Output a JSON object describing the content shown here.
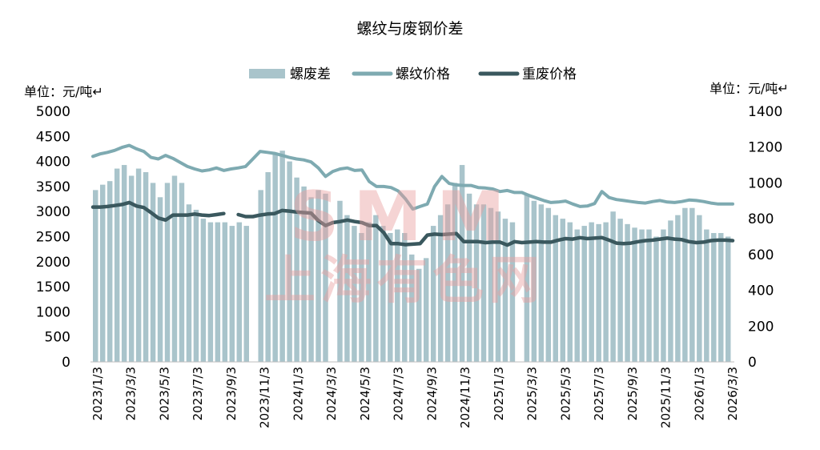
{
  "chart_data": {
    "type": "bar+line",
    "title": "螺纹与废钢价差",
    "y_left_label": "单位：元/吨↵",
    "y_right_label": "单位：元/吨↵",
    "y_left_lim": [
      0,
      5000
    ],
    "y_right_lim": [
      0,
      1400
    ],
    "y_left_ticks": [
      "0",
      "500",
      "1000",
      "1500",
      "2000",
      "2500",
      "3000",
      "3500",
      "4000",
      "4500",
      "5000"
    ],
    "y_right_ticks": [
      "0",
      "200",
      "400",
      "600",
      "800",
      "1000",
      "1200",
      "1400"
    ],
    "x_ticks": [
      "2023/1/3",
      "2023/3/3",
      "2023/5/3",
      "2023/7/3",
      "2023/9/3",
      "2023/11/3",
      "2024/1/3",
      "2024/3/3",
      "2024/5/3",
      "2024/7/3",
      "2024/9/3",
      "2024/11/3",
      "2025/1/3",
      "2025/3/3",
      "2025/5/3",
      "2025/7/3",
      "2025/9/3",
      "2025/11/3",
      "2026/1/3",
      "2026/3/3"
    ],
    "legend_position": "top",
    "grid": false,
    "series": [
      {
        "name": "螺废差",
        "axis": "right",
        "kind": "bar",
        "color": "#a9c4cb",
        "values": [
          960,
          990,
          1010,
          1080,
          1100,
          1040,
          1080,
          1060,
          1000,
          920,
          1000,
          1040,
          1000,
          880,
          850,
          800,
          780,
          780,
          780,
          760,
          780,
          760,
          0,
          960,
          1060,
          1160,
          1180,
          1120,
          1030,
          980,
          920,
          960,
          940,
          0,
          900,
          820,
          760,
          720,
          780,
          820,
          760,
          720,
          740,
          720,
          600,
          520,
          580,
          760,
          820,
          880,
          1000,
          1100,
          940,
          880,
          880,
          860,
          840,
          800,
          780,
          0,
          940,
          900,
          880,
          860,
          820,
          800,
          780,
          740,
          760,
          780,
          770,
          780,
          840,
          800,
          770,
          750,
          740,
          740,
          700,
          740,
          790,
          820,
          860,
          860,
          820,
          740,
          720,
          720,
          700
        ]
      },
      {
        "name": "螺纹价格",
        "axis": "left",
        "kind": "line",
        "color": "#7eaab1",
        "values": [
          4100,
          4150,
          4180,
          4220,
          4280,
          4320,
          4250,
          4200,
          4080,
          4050,
          4120,
          4060,
          3980,
          3900,
          3850,
          3810,
          3830,
          3870,
          3820,
          3850,
          3870,
          3900,
          4050,
          4200,
          4180,
          4160,
          4120,
          4080,
          4050,
          4030,
          3990,
          3870,
          3700,
          3800,
          3850,
          3870,
          3820,
          3830,
          3600,
          3500,
          3500,
          3480,
          3410,
          3250,
          3050,
          3100,
          3150,
          3500,
          3700,
          3560,
          3530,
          3520,
          3520,
          3480,
          3470,
          3450,
          3400,
          3420,
          3380,
          3380,
          3320,
          3270,
          3220,
          3180,
          3190,
          3210,
          3150,
          3100,
          3110,
          3160,
          3400,
          3280,
          3240,
          3220,
          3200,
          3180,
          3170,
          3200,
          3220,
          3190,
          3180,
          3200,
          3230,
          3220,
          3200,
          3170,
          3150,
          3150,
          3150
        ]
      },
      {
        "name": "重废价格",
        "axis": "left",
        "kind": "line",
        "color": "#3a585e",
        "values": [
          3090,
          3090,
          3100,
          3120,
          3140,
          3180,
          3110,
          3080,
          2980,
          2870,
          2830,
          2930,
          2930,
          2930,
          2950,
          2930,
          2920,
          2940,
          2960,
          0,
          2940,
          2900,
          2900,
          2930,
          2950,
          2960,
          3020,
          3010,
          2990,
          2980,
          2970,
          2820,
          2720,
          2780,
          2800,
          2830,
          2800,
          2780,
          2720,
          2720,
          2580,
          2360,
          2360,
          2340,
          2350,
          2360,
          2530,
          2550,
          2540,
          2550,
          2560,
          2400,
          2400,
          2400,
          2380,
          2390,
          2390,
          2330,
          2400,
          2380,
          2390,
          2400,
          2390,
          2390,
          2430,
          2460,
          2450,
          2480,
          2460,
          2470,
          2480,
          2430,
          2370,
          2360,
          2370,
          2400,
          2420,
          2430,
          2450,
          2470,
          2450,
          2440,
          2400,
          2380,
          2390,
          2420,
          2430,
          2430,
          2420
        ]
      }
    ],
    "watermark": "SMM 上海有色网"
  }
}
